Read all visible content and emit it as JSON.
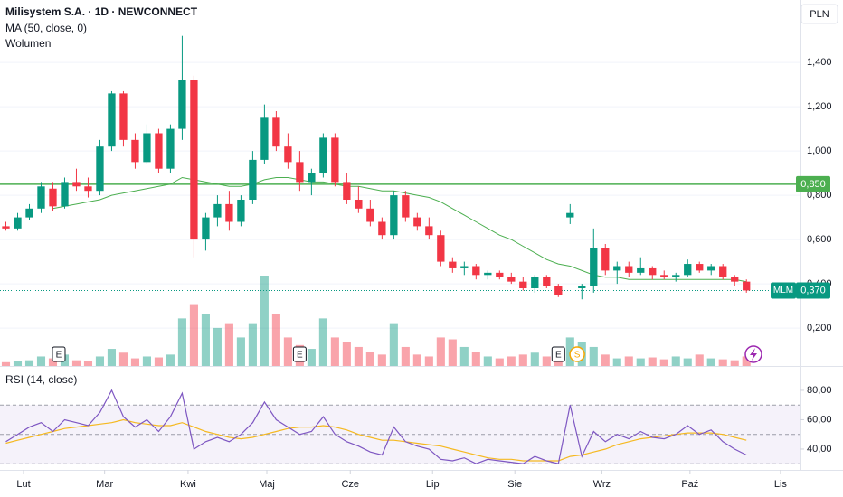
{
  "header": {
    "title": "Milisystem S.A. · 1D · NEWCONNECT",
    "currency": "PLN"
  },
  "chart_data": [
    {
      "type": "candlestick",
      "indicators": [
        "MA (50, close, 0)",
        "Wolumen"
      ],
      "up_color": "#089981",
      "down_color": "#f23645",
      "ma_color": "#4caf50",
      "xlim": [
        -0.5,
        67.6
      ],
      "xticks": [
        {
          "value": 1.5,
          "label": "Lut"
        },
        {
          "value": 8.4,
          "label": "Mar"
        },
        {
          "value": 15.5,
          "label": "Kwi"
        },
        {
          "value": 22.2,
          "label": "Maj"
        },
        {
          "value": 29.3,
          "label": "Cze"
        },
        {
          "value": 36.3,
          "label": "Lip"
        },
        {
          "value": 43.3,
          "label": "Sie"
        },
        {
          "value": 50.7,
          "label": "Wrz"
        },
        {
          "value": 58.2,
          "label": "Paź"
        },
        {
          "value": 65.9,
          "label": "Lis"
        }
      ],
      "ylim": [
        0.029,
        1.682
      ],
      "yticks": [
        {
          "value": 0.2,
          "label": "0,200"
        },
        {
          "value": 0.4,
          "label": "0,400"
        },
        {
          "value": 0.6,
          "label": "0,600"
        },
        {
          "value": 0.8,
          "label": "0,800"
        },
        {
          "value": 1.0,
          "label": "1,000"
        },
        {
          "value": 1.2,
          "label": "1,200"
        },
        {
          "value": 1.4,
          "label": "1,400"
        }
      ],
      "open": [
        0.66,
        0.65,
        0.7,
        0.74,
        0.83,
        0.75,
        0.86,
        0.84,
        0.82,
        1.02,
        1.26,
        1.05,
        0.95,
        1.08,
        0.92,
        1.1,
        1.32,
        0.6,
        0.7,
        0.76,
        0.68,
        0.78,
        0.96,
        1.15,
        1.02,
        0.95,
        0.86,
        0.9,
        1.06,
        0.86,
        0.78,
        0.74,
        0.68,
        0.62,
        0.8,
        0.7,
        0.66,
        0.62,
        0.5,
        0.47,
        0.48,
        0.44,
        0.45,
        0.43,
        0.41,
        0.38,
        0.43,
        0.39,
        0.7,
        0.38,
        0.39,
        0.56,
        0.46,
        0.48,
        0.45,
        0.47,
        0.44,
        0.43,
        0.44,
        0.49,
        0.46,
        0.48,
        0.43,
        0.41
      ],
      "high": [
        0.68,
        0.72,
        0.76,
        0.86,
        0.86,
        0.88,
        0.92,
        0.88,
        1.05,
        1.27,
        1.27,
        1.08,
        1.12,
        1.1,
        1.12,
        1.52,
        1.34,
        0.72,
        0.8,
        0.82,
        0.8,
        1.0,
        1.21,
        1.18,
        1.08,
        1.0,
        0.92,
        1.08,
        1.08,
        0.9,
        0.84,
        0.78,
        0.7,
        0.82,
        0.82,
        0.72,
        0.7,
        0.64,
        0.52,
        0.5,
        0.49,
        0.46,
        0.46,
        0.45,
        0.43,
        0.44,
        0.44,
        0.4,
        0.76,
        0.4,
        0.65,
        0.58,
        0.5,
        0.5,
        0.52,
        0.48,
        0.46,
        0.45,
        0.51,
        0.5,
        0.49,
        0.49,
        0.44,
        0.42
      ],
      "low": [
        0.64,
        0.64,
        0.69,
        0.72,
        0.73,
        0.74,
        0.82,
        0.79,
        0.8,
        1.0,
        1.02,
        0.92,
        0.94,
        0.9,
        0.9,
        1.05,
        0.52,
        0.55,
        0.66,
        0.64,
        0.66,
        0.76,
        0.94,
        1.0,
        0.92,
        0.82,
        0.8,
        0.88,
        0.84,
        0.76,
        0.72,
        0.66,
        0.6,
        0.6,
        0.68,
        0.64,
        0.6,
        0.48,
        0.45,
        0.44,
        0.42,
        0.42,
        0.42,
        0.4,
        0.37,
        0.36,
        0.38,
        0.34,
        0.67,
        0.33,
        0.36,
        0.44,
        0.4,
        0.43,
        0.44,
        0.42,
        0.42,
        0.41,
        0.43,
        0.45,
        0.44,
        0.42,
        0.39,
        0.36
      ],
      "close": [
        0.65,
        0.7,
        0.74,
        0.84,
        0.75,
        0.86,
        0.84,
        0.82,
        1.02,
        1.26,
        1.05,
        0.95,
        1.08,
        0.92,
        1.1,
        1.32,
        0.6,
        0.7,
        0.76,
        0.68,
        0.78,
        0.96,
        1.15,
        1.02,
        0.95,
        0.86,
        0.9,
        1.06,
        0.86,
        0.78,
        0.74,
        0.68,
        0.62,
        0.8,
        0.7,
        0.66,
        0.62,
        0.5,
        0.47,
        0.48,
        0.44,
        0.45,
        0.43,
        0.41,
        0.38,
        0.43,
        0.39,
        0.35,
        0.72,
        0.39,
        0.56,
        0.46,
        0.48,
        0.45,
        0.47,
        0.44,
        0.43,
        0.44,
        0.49,
        0.46,
        0.48,
        0.43,
        0.41,
        0.37
      ],
      "ma": [
        null,
        null,
        null,
        null,
        0.74,
        0.75,
        0.76,
        0.77,
        0.78,
        0.8,
        0.81,
        0.82,
        0.83,
        0.84,
        0.85,
        0.88,
        0.87,
        0.86,
        0.85,
        0.84,
        0.84,
        0.85,
        0.87,
        0.88,
        0.88,
        0.87,
        0.86,
        0.86,
        0.85,
        0.84,
        0.84,
        0.83,
        0.82,
        0.82,
        0.81,
        0.8,
        0.79,
        0.77,
        0.74,
        0.71,
        0.68,
        0.65,
        0.62,
        0.6,
        0.57,
        0.54,
        0.51,
        0.49,
        0.48,
        0.46,
        0.44,
        0.43,
        0.43,
        0.42,
        0.42,
        0.42,
        0.42,
        0.42,
        0.42,
        0.42,
        0.42,
        0.42,
        0.42,
        0.41
      ],
      "volume": [
        4,
        5,
        6,
        10,
        8,
        12,
        6,
        5,
        10,
        18,
        14,
        8,
        10,
        9,
        12,
        50,
        65,
        55,
        40,
        45,
        30,
        45,
        95,
        55,
        30,
        22,
        18,
        50,
        30,
        25,
        20,
        15,
        12,
        45,
        20,
        12,
        10,
        30,
        28,
        20,
        15,
        10,
        8,
        10,
        12,
        14,
        10,
        15,
        30,
        25,
        20,
        12,
        8,
        10,
        8,
        9,
        7,
        10,
        8,
        12,
        8,
        7,
        6,
        10
      ],
      "hline": {
        "value": 0.85,
        "label": "0,850",
        "color": "#4caf50"
      },
      "last_price": {
        "value": 0.37,
        "label": "0,370",
        "symbol": "MLM"
      },
      "events": [
        {
          "label": "E",
          "x": 4.5
        },
        {
          "label": "E",
          "x": 25
        },
        {
          "label": "E",
          "x": 47
        },
        {
          "label": "S",
          "x": 48.6
        }
      ]
    },
    {
      "type": "line",
      "title": "RSI (14, close)",
      "ylim": [
        28.9,
        93.5
      ],
      "yticks": [
        {
          "value": 40,
          "label": "40,00"
        },
        {
          "value": 60,
          "label": "60,00"
        },
        {
          "value": 80,
          "label": "80,00"
        }
      ],
      "bands": [
        30,
        50,
        70
      ],
      "series": [
        {
          "color": "#7e57c2",
          "values": [
            45,
            50,
            55,
            58,
            52,
            60,
            58,
            56,
            65,
            80,
            62,
            55,
            60,
            52,
            62,
            78,
            40,
            45,
            48,
            45,
            50,
            58,
            72,
            60,
            55,
            50,
            52,
            62,
            50,
            45,
            42,
            38,
            36,
            55,
            45,
            42,
            40,
            33,
            32,
            34,
            30,
            33,
            32,
            31,
            30,
            35,
            32,
            30,
            70,
            35,
            52,
            45,
            50,
            47,
            52,
            48,
            47,
            50,
            56,
            50,
            53,
            45,
            40,
            36
          ]
        },
        {
          "color": "#f5b921",
          "values": [
            44,
            46,
            48,
            50,
            52,
            54,
            55,
            56,
            57,
            58,
            60,
            58,
            57,
            56,
            56,
            58,
            55,
            52,
            50,
            48,
            47,
            48,
            50,
            52,
            54,
            55,
            55,
            56,
            55,
            53,
            50,
            48,
            46,
            46,
            45,
            44,
            43,
            42,
            40,
            38,
            36,
            34,
            33,
            33,
            32,
            32,
            32,
            32,
            35,
            36,
            38,
            40,
            43,
            45,
            47,
            48,
            49,
            50,
            51,
            51,
            51,
            50,
            48,
            46
          ]
        }
      ]
    }
  ]
}
